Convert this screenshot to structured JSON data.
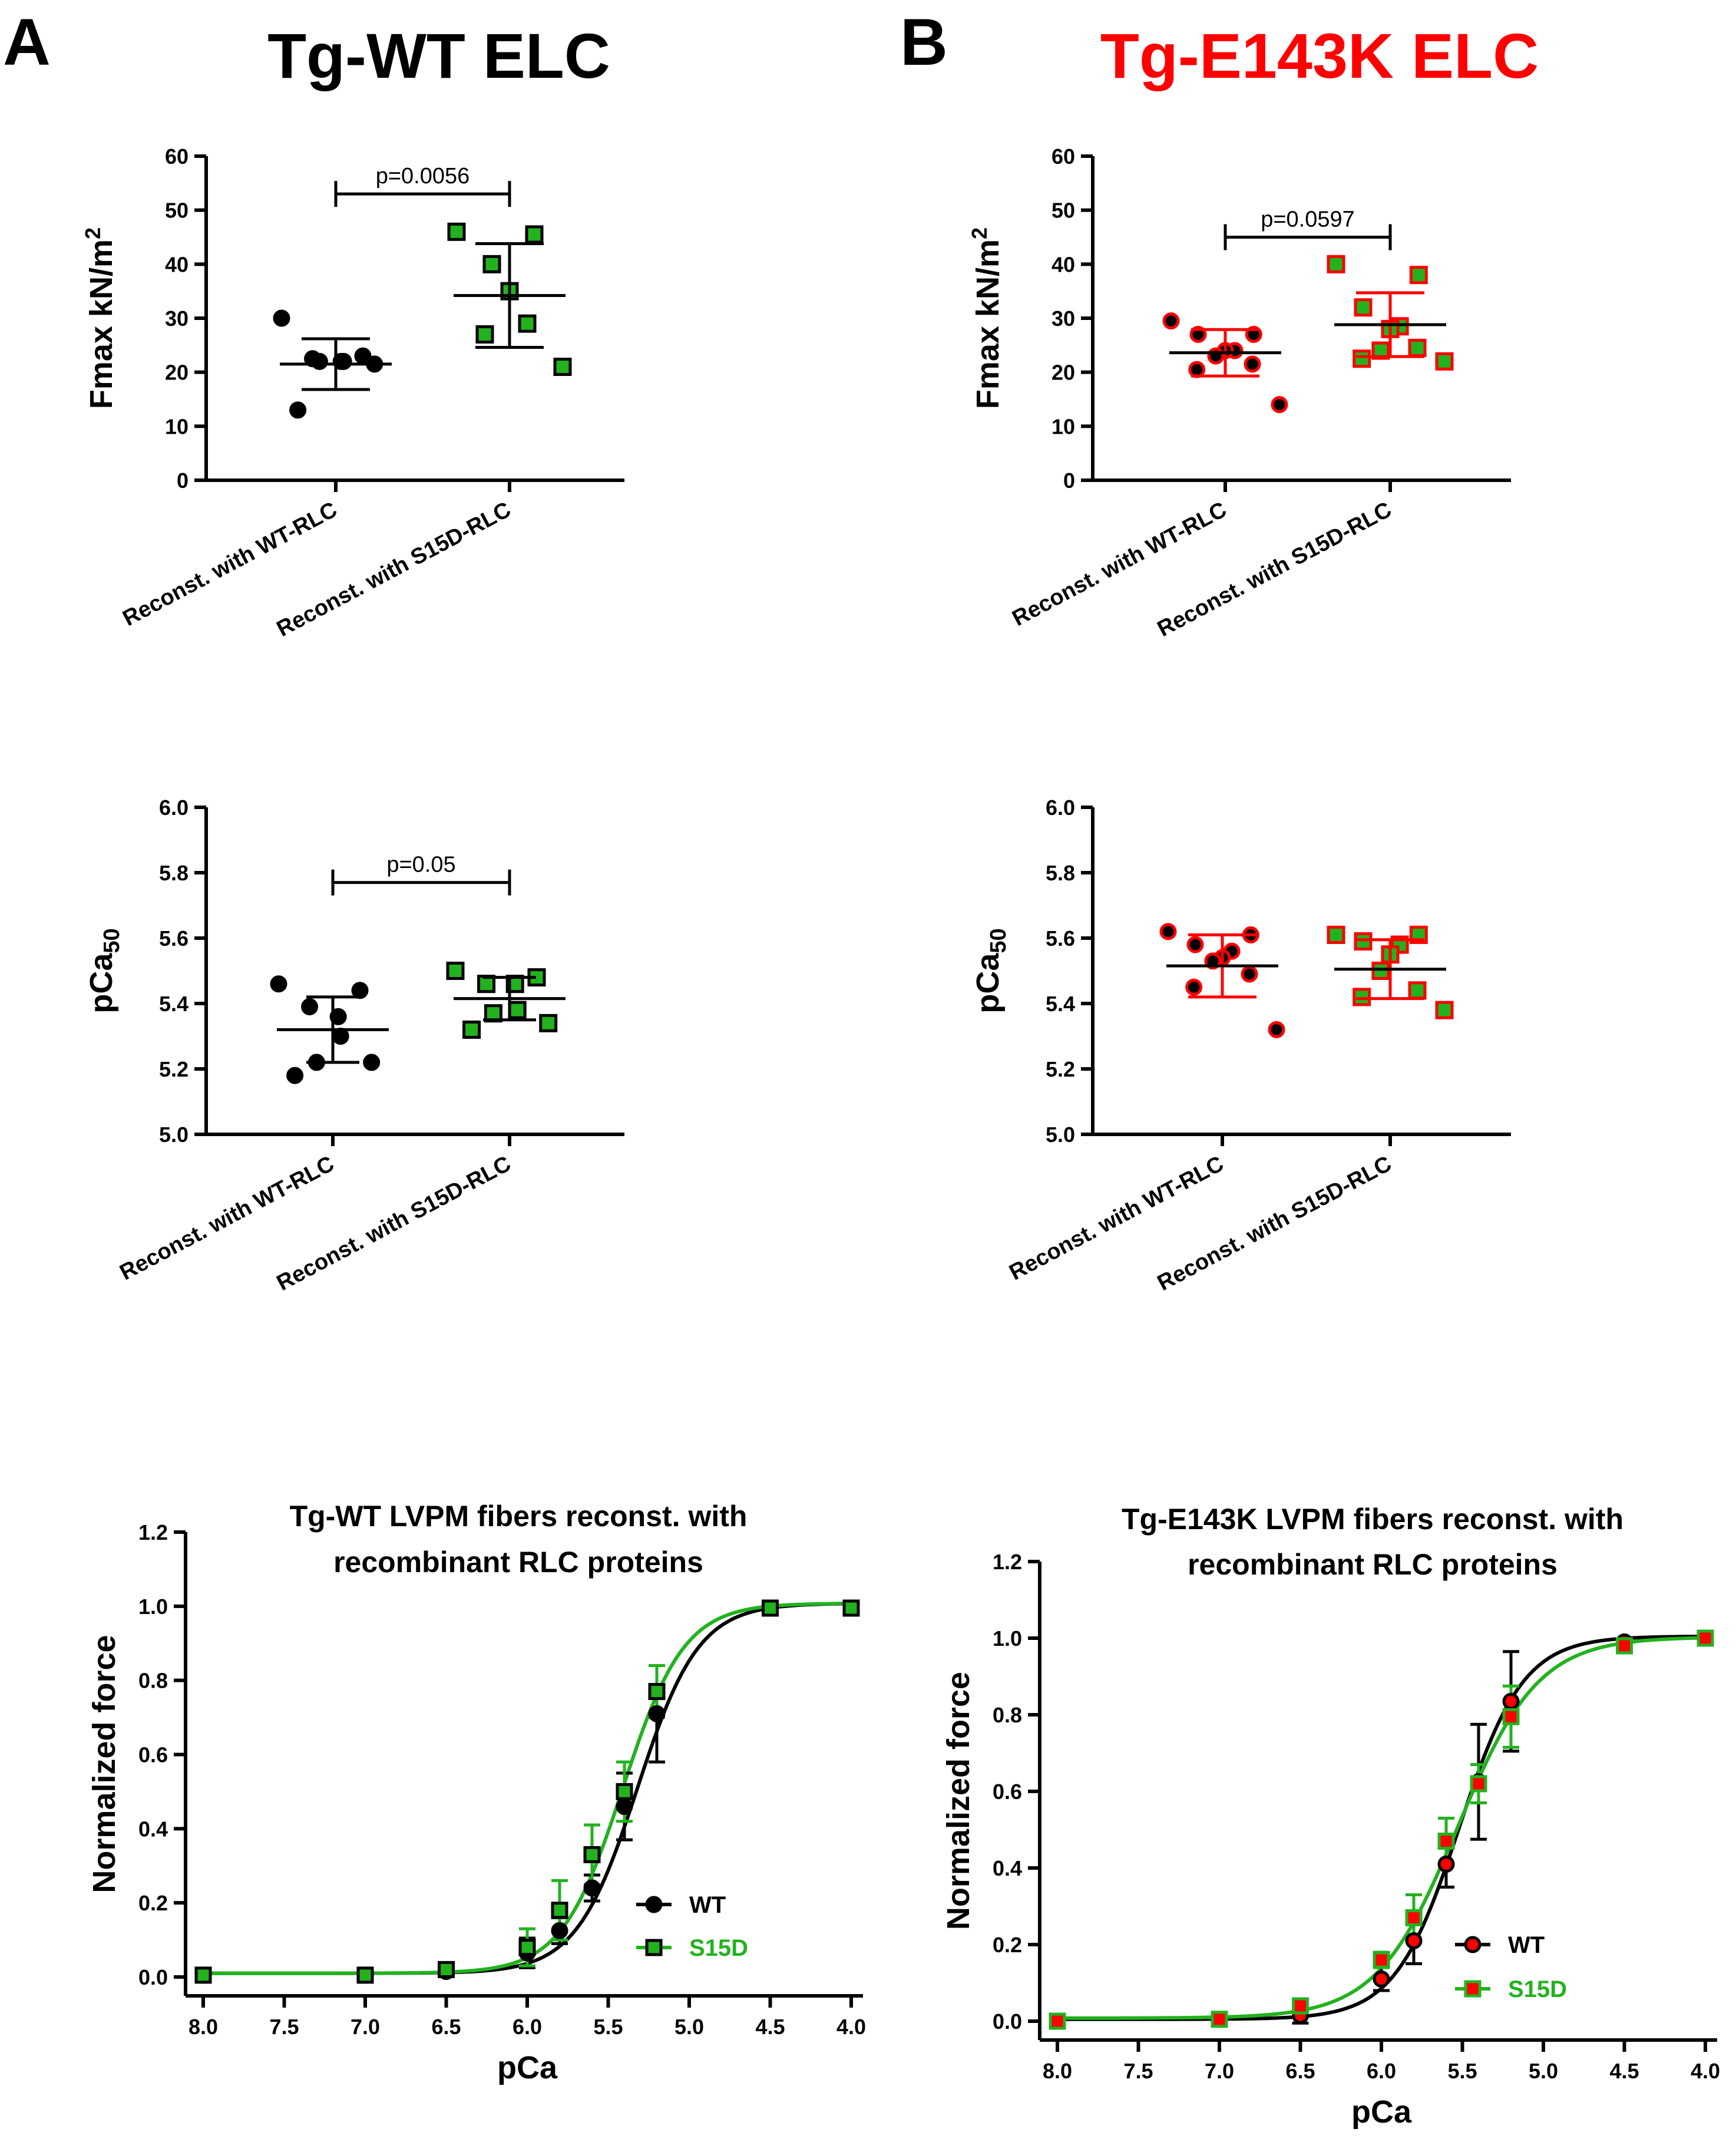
{
  "panels": [
    {
      "letter": "A",
      "title": "Tg-WT ELC",
      "title_color": "#000000"
    },
    {
      "letter": "B",
      "title": "Tg-E143K ELC",
      "title_color": "#ff0000"
    }
  ],
  "colors": {
    "black": "#000000",
    "green": "#22b21e",
    "red": "#ff0000"
  },
  "chart_data": [
    {
      "id": "A-fmax",
      "type": "scatter",
      "ylabel": "Fmax kN/m",
      "ylabel_sup": "2",
      "ylim": [
        0,
        60
      ],
      "yticks": [
        0,
        10,
        20,
        30,
        40,
        50,
        60
      ],
      "categories": [
        "Reconst. with WT-RLC",
        "Reconst. with S15D-RLC"
      ],
      "series": [
        {
          "name": "WT-RLC",
          "marker": "circle",
          "fill": "#000000",
          "stroke": "#000000",
          "err_color": "#000000",
          "values": [
            30,
            23,
            22.5,
            22,
            22,
            22,
            21.5,
            13
          ],
          "mean": 21.5,
          "sd": 4.7
        },
        {
          "name": "S15D-RLC",
          "marker": "square",
          "fill": "#22b21e",
          "stroke": "#000000",
          "err_color": "#000000",
          "values": [
            46,
            45.5,
            40,
            35,
            29,
            27,
            21
          ],
          "mean": 34.2,
          "sd": 9.6
        }
      ],
      "significance": {
        "label": "p=0.0056",
        "y": 53
      }
    },
    {
      "id": "B-fmax",
      "type": "scatter",
      "ylabel": "Fmax kN/m",
      "ylabel_sup": "2",
      "ylim": [
        0,
        60
      ],
      "yticks": [
        0,
        10,
        20,
        30,
        40,
        50,
        60
      ],
      "categories": [
        "Reconst. with WT-RLC",
        "Reconst. with S15D-RLC"
      ],
      "series": [
        {
          "name": "WT-RLC",
          "marker": "circle",
          "fill": "#000000",
          "stroke": "#ff0000",
          "err_color": "#ff0000",
          "values": [
            29.5,
            27,
            27,
            24,
            24,
            23,
            21.5,
            20.5,
            14
          ],
          "mean": 23.6,
          "sd": 4.3
        },
        {
          "name": "S15D-RLC",
          "marker": "square",
          "fill": "#22b21e",
          "stroke": "#ff0000",
          "err_color": "#ff0000",
          "values": [
            40,
            38,
            32,
            28.5,
            28,
            24,
            24.5,
            22.5,
            22
          ],
          "mean": 28.8,
          "sd": 5.9
        }
      ],
      "significance": {
        "label": "p=0.0597",
        "y": 45
      }
    },
    {
      "id": "A-pca50",
      "type": "scatter",
      "ylabel": "pCa",
      "ylabel_sub": "50",
      "ylim": [
        5.0,
        6.0
      ],
      "yticks": [
        "5.0",
        "5.2",
        "5.4",
        "5.6",
        "5.8",
        "6.0"
      ],
      "categories": [
        "Reconst. with WT-RLC",
        "Reconst. with S15D-RLC"
      ],
      "series": [
        {
          "name": "WT-RLC",
          "marker": "circle",
          "fill": "#000000",
          "stroke": "#000000",
          "err_color": "#000000",
          "values": [
            5.46,
            5.44,
            5.39,
            5.36,
            5.3,
            5.22,
            5.22,
            5.18
          ],
          "mean": 5.32,
          "sd": 0.1
        },
        {
          "name": "S15D-RLC",
          "marker": "square",
          "fill": "#22b21e",
          "stroke": "#000000",
          "err_color": "#000000",
          "values": [
            5.5,
            5.48,
            5.46,
            5.46,
            5.38,
            5.37,
            5.34,
            5.32
          ],
          "mean": 5.415,
          "sd": 0.065
        }
      ],
      "significance": {
        "label": "p=0.05",
        "y": 5.77
      }
    },
    {
      "id": "B-pca50",
      "type": "scatter",
      "ylabel": "pCa",
      "ylabel_sub": "50",
      "ylim": [
        5.0,
        6.0
      ],
      "yticks": [
        "5.0",
        "5.2",
        "5.4",
        "5.6",
        "5.8",
        "6.0"
      ],
      "categories": [
        "Reconst. with WT-RLC",
        "Reconst. with S15D-RLC"
      ],
      "series": [
        {
          "name": "WT-RLC",
          "marker": "circle",
          "fill": "#000000",
          "stroke": "#ff0000",
          "err_color": "#ff0000",
          "values": [
            5.62,
            5.61,
            5.58,
            5.56,
            5.54,
            5.53,
            5.49,
            5.45,
            5.32
          ],
          "mean": 5.515,
          "sd": 0.095
        },
        {
          "name": "S15D-RLC",
          "marker": "square",
          "fill": "#22b21e",
          "stroke": "#ff0000",
          "err_color": "#ff0000",
          "values": [
            5.61,
            5.61,
            5.59,
            5.58,
            5.55,
            5.5,
            5.44,
            5.42,
            5.38
          ],
          "mean": 5.505,
          "sd": 0.09
        }
      ],
      "significance": null
    },
    {
      "id": "A-curve",
      "type": "line",
      "title": [
        "Tg-WT LVPM fibers reconst. with",
        "recombinant RLC proteins"
      ],
      "xlabel": "pCa",
      "ylabel": "Normalized force",
      "xlim": [
        8.0,
        4.0
      ],
      "ylim": [
        0.0,
        1.2
      ],
      "xticks": [
        "8.0",
        "7.5",
        "7.0",
        "6.5",
        "6.0",
        "5.5",
        "5.0",
        "4.5",
        "4.0"
      ],
      "yticks": [
        "0.0",
        "0.2",
        "0.4",
        "0.6",
        "0.8",
        "1.0",
        "1.2"
      ],
      "x": [
        8.0,
        7.0,
        6.5,
        6.0,
        5.8,
        5.6,
        5.4,
        5.2,
        4.5,
        4.0
      ],
      "series": [
        {
          "name": "WT",
          "marker": "circle",
          "fill": "#000000",
          "stroke": "#000000",
          "line": "#000000",
          "legend_color": "#000000",
          "values": [
            0.005,
            0.005,
            0.015,
            0.065,
            0.125,
            0.24,
            0.46,
            0.71,
            0.995,
            0.995
          ],
          "err": [
            0,
            0,
            0.01,
            0.04,
            0.035,
            0.035,
            0.09,
            0.13,
            0,
            0
          ],
          "fit": {
            "pca50": 5.32,
            "nh": 2.3,
            "max": 1.008,
            "min": 0.01
          }
        },
        {
          "name": "S15D",
          "marker": "square",
          "fill": "#22b21e",
          "stroke": "#000000",
          "line": "#22b21e",
          "legend_color": "#22b21e",
          "values": [
            0.005,
            0.005,
            0.02,
            0.08,
            0.18,
            0.33,
            0.5,
            0.77,
            0.995,
            0.995
          ],
          "err": [
            0,
            0,
            0.01,
            0.05,
            0.08,
            0.08,
            0.08,
            0.07,
            0,
            0
          ],
          "fit": {
            "pca50": 5.41,
            "nh": 2.3,
            "max": 1.008,
            "min": 0.01
          }
        }
      ],
      "legend_position": "lower-right"
    },
    {
      "id": "B-curve",
      "type": "line",
      "title": [
        "Tg-E143K LVPM fibers reconst. with",
        "recombinant RLC proteins"
      ],
      "xlabel": "pCa",
      "ylabel": "Normalized force",
      "xlim": [
        8.0,
        4.0
      ],
      "ylim": [
        0.0,
        1.2
      ],
      "xticks": [
        "8.0",
        "7.5",
        "7.0",
        "6.5",
        "6.0",
        "5.5",
        "5.0",
        "4.5",
        "4.0"
      ],
      "yticks": [
        "0.0",
        "0.2",
        "0.4",
        "0.6",
        "0.8",
        "1.0",
        "1.2"
      ],
      "x": [
        8.0,
        7.0,
        6.5,
        6.0,
        5.8,
        5.6,
        5.4,
        5.2,
        4.5,
        4.0
      ],
      "series": [
        {
          "name": "WT",
          "marker": "circle",
          "fill": "#ff0000",
          "stroke": "#000000",
          "line": "#000000",
          "legend_color": "#000000",
          "values": [
            0.0,
            0.005,
            0.015,
            0.11,
            0.21,
            0.41,
            0.625,
            0.835,
            0.99,
            1.0
          ],
          "err": [
            0,
            0,
            0.02,
            0.03,
            0.06,
            0.06,
            0.15,
            0.13,
            0,
            0
          ],
          "fit": {
            "pca50": 5.52,
            "nh": 2.2,
            "max": 1.005,
            "min": 0.005
          }
        },
        {
          "name": "S15D",
          "marker": "square",
          "fill": "#ff0000",
          "stroke": "#22b21e",
          "line": "#22b21e",
          "legend_color": "#22b21e",
          "values": [
            0.0,
            0.005,
            0.04,
            0.16,
            0.27,
            0.47,
            0.62,
            0.795,
            0.98,
            1.0
          ],
          "err": [
            0,
            0,
            0.015,
            0.02,
            0.06,
            0.06,
            0.05,
            0.08,
            0,
            0
          ],
          "fit": {
            "pca50": 5.53,
            "nh": 1.75,
            "max": 1.003,
            "min": 0.008
          }
        }
      ],
      "legend_position": "lower-right"
    }
  ]
}
